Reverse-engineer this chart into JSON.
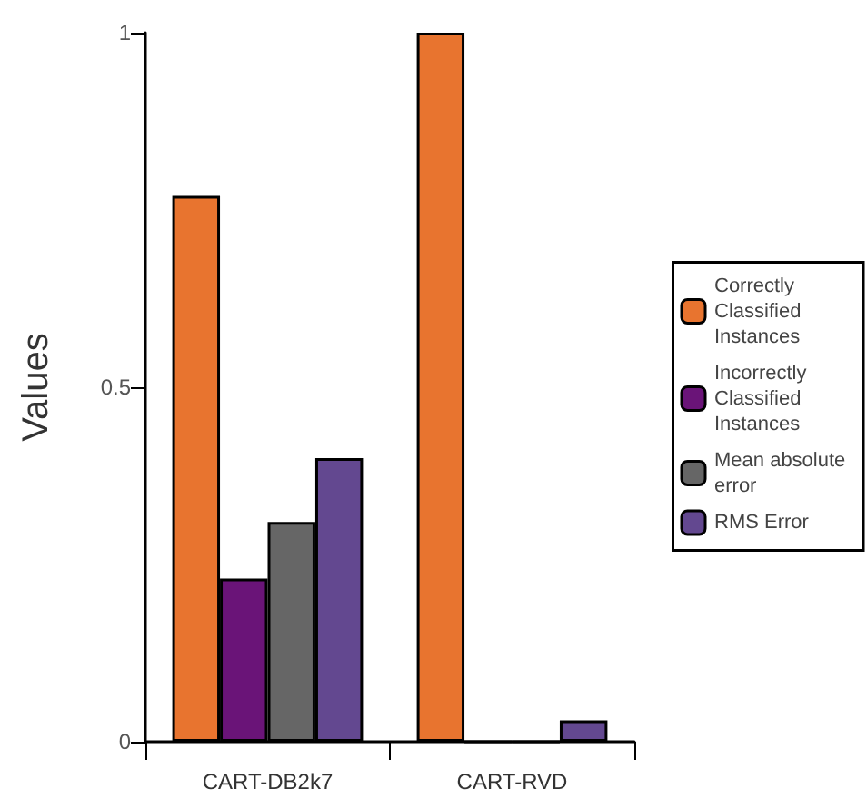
{
  "chart_data": {
    "type": "bar",
    "ylabel": "Values",
    "categories": [
      "CART-DB2k7",
      "CART-RVD"
    ],
    "series": [
      {
        "name": "Correctly Classified Instances",
        "color": "#e8742f",
        "values": [
          0.77,
          1
        ]
      },
      {
        "name": "Incorrectly Classified Instances",
        "color": "#6a1478",
        "values": [
          0.23,
          0
        ]
      },
      {
        "name": "Mean absolute error",
        "color": "#666666",
        "values": [
          0.31,
          0
        ]
      },
      {
        "name": "RMS Error",
        "color": "#634890",
        "values": [
          0.4,
          0.03
        ]
      }
    ],
    "ylim": [
      0,
      1
    ],
    "yticks": [
      0,
      0.5,
      1
    ],
    "grid": false,
    "legend": "right"
  }
}
